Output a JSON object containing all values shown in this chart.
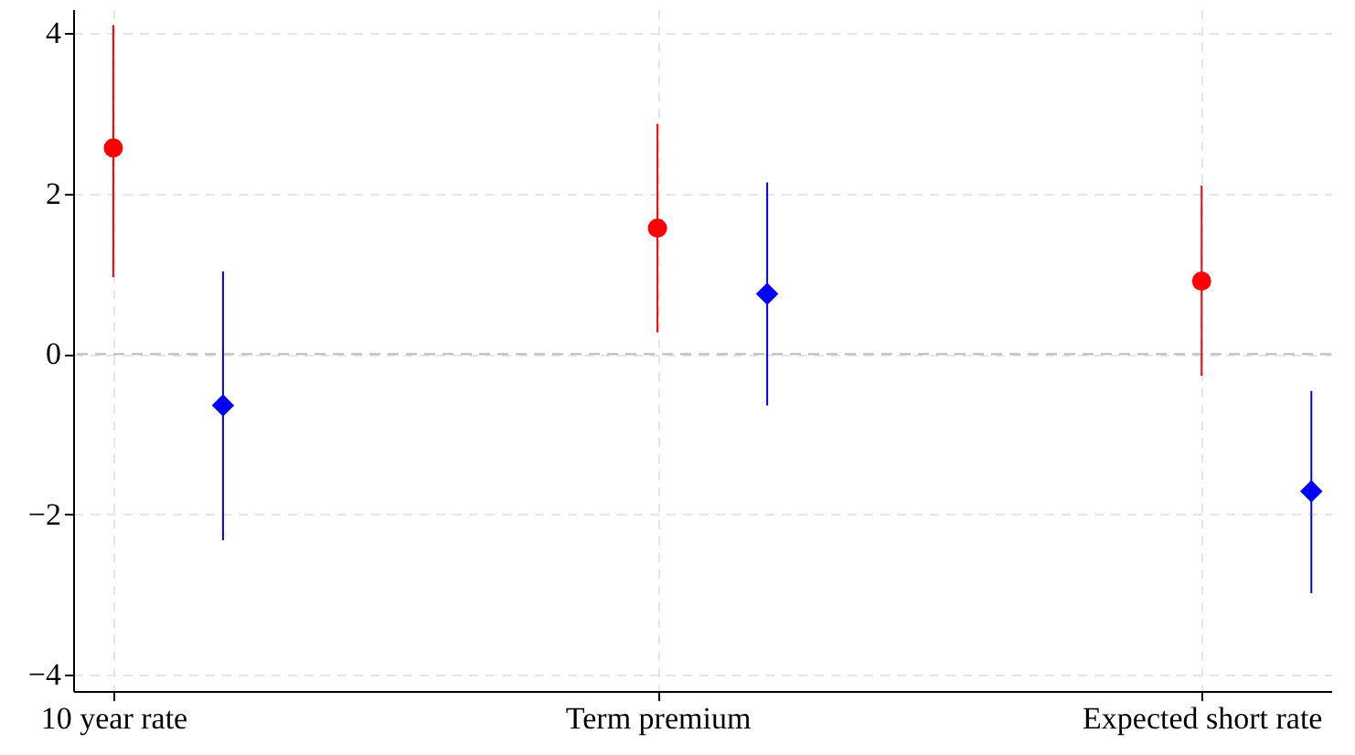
{
  "chart_data": {
    "type": "scatter",
    "categories": [
      "10 year rate",
      "Term premium",
      "Expected short rate"
    ],
    "ylim": [
      -4.2,
      4.3
    ],
    "yticks": [
      -4,
      -2,
      0,
      2,
      4
    ],
    "grid": true,
    "ref_lines": [
      {
        "axis": "y",
        "value": 0,
        "line_style": "dashed",
        "color": "#bfbfbf"
      }
    ],
    "series": [
      {
        "color": "#ff0000",
        "marker": "circle",
        "values": [
          2.57,
          1.57,
          0.91
        ],
        "errors": [
          [
            0.96,
            4.1
          ],
          [
            0.27,
            2.87
          ],
          [
            -0.27,
            2.1
          ]
        ]
      },
      {
        "color": "#0000ff",
        "marker": "diamond",
        "values": [
          -0.64,
          0.75,
          -1.71
        ],
        "errors": [
          [
            -2.32,
            1.03
          ],
          [
            -0.64,
            2.14
          ],
          [
            -2.98,
            -0.46
          ]
        ]
      }
    ]
  }
}
